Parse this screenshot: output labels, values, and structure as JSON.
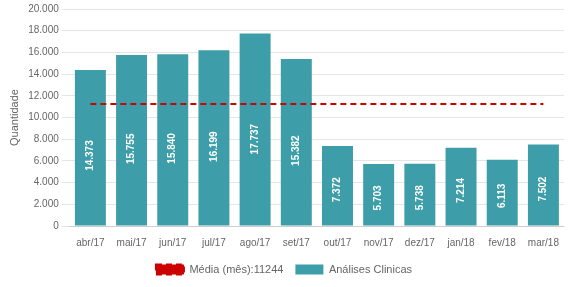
{
  "chart_data": {
    "type": "bar",
    "categories": [
      "abr/17",
      "mai/17",
      "jun/17",
      "jul/17",
      "ago/17",
      "set/17",
      "out/17",
      "nov/17",
      "dez/17",
      "jan/18",
      "fev/18",
      "mar/18"
    ],
    "series": [
      {
        "name": "Análises Clinicas",
        "type": "bar",
        "color": "#3d9da8",
        "values": [
          14373,
          15755,
          15840,
          16199,
          17737,
          15382,
          7372,
          5703,
          5738,
          7214,
          6113,
          7502
        ],
        "value_labels": [
          "14.373",
          "15.755",
          "15.840",
          "16.199",
          "17.737",
          "15.382",
          "7.372",
          "5.703",
          "5.738",
          "7.214",
          "6.113",
          "7.502"
        ]
      },
      {
        "name": "Média (mês):11244",
        "type": "line",
        "color": "#cc0000",
        "line_style": "dashed",
        "values": [
          11244,
          11244,
          11244,
          11244,
          11244,
          11244,
          11244,
          11244,
          11244,
          11244,
          11244,
          11244
        ]
      }
    ],
    "ylabel": "Quantidade",
    "ylim": [
      0,
      20000
    ],
    "yticks": [
      0,
      {
        "value": 2000,
        "label": "2.000"
      },
      {
        "value": 4000,
        "label": "4.000"
      },
      {
        "value": 6000,
        "label": "6.000"
      },
      {
        "value": 8000,
        "label": "8.000"
      },
      {
        "value": 10000,
        "label": "10.000"
      },
      {
        "value": 12000,
        "label": "12.000"
      },
      {
        "value": 14000,
        "label": "14.000"
      },
      {
        "value": 16000,
        "label": "16.000"
      },
      {
        "value": 18000,
        "label": "18.000"
      },
      {
        "value": 20000,
        "label": "20.000"
      }
    ],
    "grid": true,
    "legend": "bottom",
    "data_labels": true
  }
}
